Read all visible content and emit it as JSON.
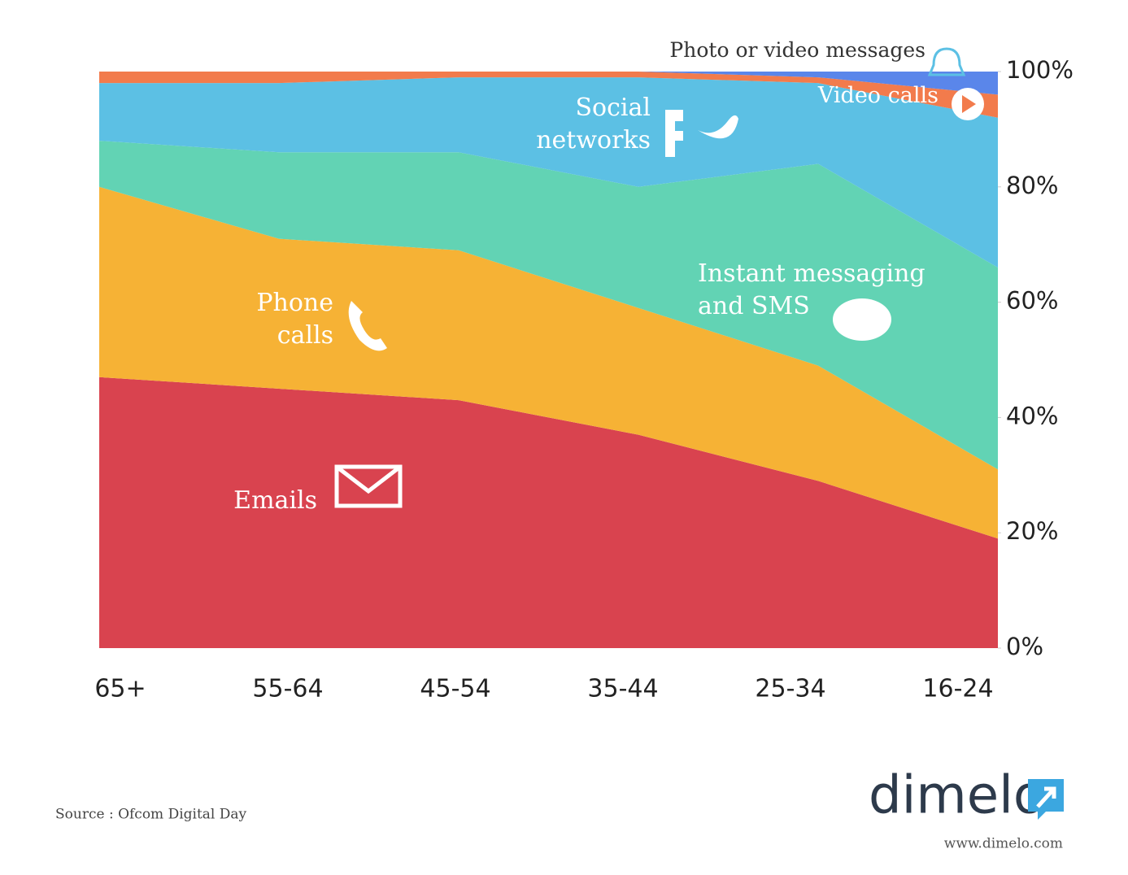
{
  "chart_data": {
    "type": "stacked_area",
    "categories": [
      "65+",
      "55-64",
      "45-54",
      "35-44",
      "25-34",
      "16-24"
    ],
    "series": [
      {
        "name": "Emails",
        "color": "#d9434f",
        "values": [
          47,
          45,
          43,
          37,
          29,
          19
        ]
      },
      {
        "name": "Phone calls",
        "color": "#f6b235",
        "values": [
          33,
          26,
          26,
          22,
          20,
          12
        ]
      },
      {
        "name": "Instant messaging and SMS",
        "color": "#62d3b4",
        "values": [
          8,
          15,
          17,
          21,
          35,
          35
        ]
      },
      {
        "name": "Social networks",
        "color": "#5cc0e4",
        "values": [
          10,
          12,
          13,
          19,
          14,
          26
        ]
      },
      {
        "name": "Video calls",
        "color": "#f27b4c",
        "values": [
          2,
          2,
          1,
          1,
          1,
          4
        ]
      },
      {
        "name": "Photo or video messages",
        "color": "#5a86ea",
        "values": [
          0,
          0,
          0,
          0,
          1,
          4
        ]
      }
    ],
    "ylim": [
      0,
      100
    ],
    "yticks": [
      {
        "value": 0,
        "label": "0%"
      },
      {
        "value": 20,
        "label": "20%"
      },
      {
        "value": 40,
        "label": "40%"
      },
      {
        "value": 60,
        "label": "60%"
      },
      {
        "value": 80,
        "label": "80%"
      },
      {
        "value": 100,
        "label": "100%"
      }
    ],
    "y_axis_side": "right"
  },
  "footer": {
    "source": "Source : Ofcom Digital Day",
    "logo": "dimelo",
    "url": "www.dimelo.com"
  }
}
